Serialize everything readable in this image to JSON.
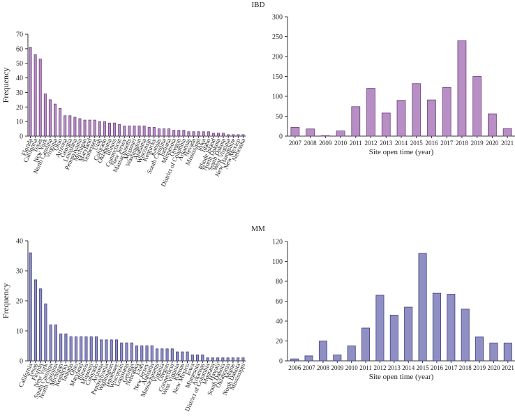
{
  "panel_titles": {
    "ibd": "IBD",
    "mm": "MM"
  },
  "colors": {
    "ibd_fill": "#b88fc4",
    "ibd_stroke": "#6a3c7c",
    "mm_fill": "#8f8fc4",
    "mm_stroke": "#3c3c7c",
    "axis": "#333333"
  },
  "chart_data": [
    {
      "id": "ibd-state",
      "type": "bar",
      "group": "IBD",
      "title": "",
      "xlabel": "",
      "ylabel": "Frequency",
      "ylim": [
        0,
        70
      ],
      "yticks": [
        0,
        10,
        20,
        30,
        40,
        50,
        60,
        70
      ],
      "categories": [
        "Florida",
        "California",
        "Texas",
        "New York",
        "North Carolina",
        "Virginia",
        "Ohio",
        "Arizona",
        "Georgia",
        "Louisiana",
        "Pennsylvania",
        "Michigan",
        "Maryland",
        "Tennessee",
        "Utah",
        "Colorado",
        "Oklahoma",
        "Illinois",
        "Connecticut",
        "New Jersey",
        "Massachusetts",
        "Missouri",
        "Washington",
        "Alabama",
        "Wisconsin",
        "Kentucky",
        "Kansas",
        "South Carolina",
        "Indiana",
        "Minnesota",
        "Oregon",
        "District of Columbia",
        "Arkansas",
        "Nevada",
        "Mississippi",
        "Iowa",
        "Idaho",
        "Rhode Island",
        "North Dakota",
        "South Dakota",
        "West Virginia",
        "New Hampshire",
        "New Mexico",
        "Nebraska"
      ],
      "values": [
        61,
        56,
        53,
        29,
        25,
        22,
        19,
        14,
        14,
        13,
        12,
        11,
        11,
        11,
        10,
        10,
        9,
        9,
        8,
        7,
        7,
        7,
        7,
        7,
        6,
        6,
        5,
        5,
        5,
        4,
        4,
        4,
        3,
        3,
        3,
        3,
        3,
        2,
        2,
        2,
        1,
        1,
        1,
        1
      ]
    },
    {
      "id": "ibd-year",
      "type": "bar",
      "group": "IBD",
      "title": "IBD",
      "xlabel": "Site open time (year)",
      "ylabel": "",
      "ylim": [
        0,
        300
      ],
      "yticks": [
        0,
        50,
        100,
        150,
        200,
        250,
        300
      ],
      "categories": [
        "2007",
        "2008",
        "2009",
        "2010",
        "2011",
        "2012",
        "2013",
        "2014",
        "2015",
        "2016",
        "2017",
        "2018",
        "2019",
        "2020",
        "2021"
      ],
      "values": [
        22,
        18,
        1,
        13,
        74,
        120,
        58,
        90,
        132,
        91,
        122,
        240,
        150,
        56,
        19
      ]
    },
    {
      "id": "mm-state",
      "type": "bar",
      "group": "MM",
      "title": "",
      "xlabel": "",
      "ylabel": "Frequency",
      "ylim": [
        0,
        40
      ],
      "yticks": [
        0,
        10,
        20,
        30,
        40
      ],
      "categories": [
        "California",
        "Texas",
        "Florida",
        "New York",
        "South Carolina",
        "North Carolina",
        "Michigan",
        "Kentucky",
        "Indiana",
        "Ohio",
        "Maryland",
        "Illinois",
        "Missouri",
        "Colorado",
        "Arizona",
        "Pennsylvania",
        "Washington",
        "Tennessee",
        "Wisconsin",
        "Louisiana",
        "Georgia",
        "Nebraska",
        "Utah",
        "New Jersey",
        "Alabama",
        "Massachusetts",
        "Virginia",
        "Oregon",
        "Connecticut",
        "West Virginia",
        "Kansas",
        "New Mexico",
        "Iowa",
        "Minnesota",
        "Arkansas",
        "District of Columbia",
        "Montana",
        "Hawaii",
        "South Dakota",
        "Oklahoma",
        "Maine",
        "North Dakota",
        "Mississippi"
      ],
      "values": [
        36,
        27,
        24,
        19,
        12,
        12,
        9,
        9,
        8,
        8,
        8,
        8,
        8,
        8,
        7,
        7,
        7,
        7,
        6,
        6,
        6,
        5,
        5,
        5,
        5,
        4,
        4,
        4,
        4,
        3,
        3,
        3,
        2,
        2,
        2,
        1,
        1,
        1,
        1,
        1,
        1,
        1,
        1
      ]
    },
    {
      "id": "mm-year",
      "type": "bar",
      "group": "MM",
      "title": "MM",
      "xlabel": "Site open time (year)",
      "ylabel": "",
      "ylim": [
        0,
        120
      ],
      "yticks": [
        0,
        20,
        40,
        60,
        80,
        100,
        120
      ],
      "categories": [
        "2006",
        "2007",
        "2008",
        "2009",
        "2010",
        "2011",
        "2012",
        "2013",
        "2014",
        "2015",
        "2016",
        "2017",
        "2018",
        "2019",
        "2020",
        "2021"
      ],
      "values": [
        2,
        5,
        20,
        6,
        15,
        33,
        66,
        46,
        54,
        108,
        68,
        67,
        52,
        24,
        18,
        18
      ]
    }
  ]
}
